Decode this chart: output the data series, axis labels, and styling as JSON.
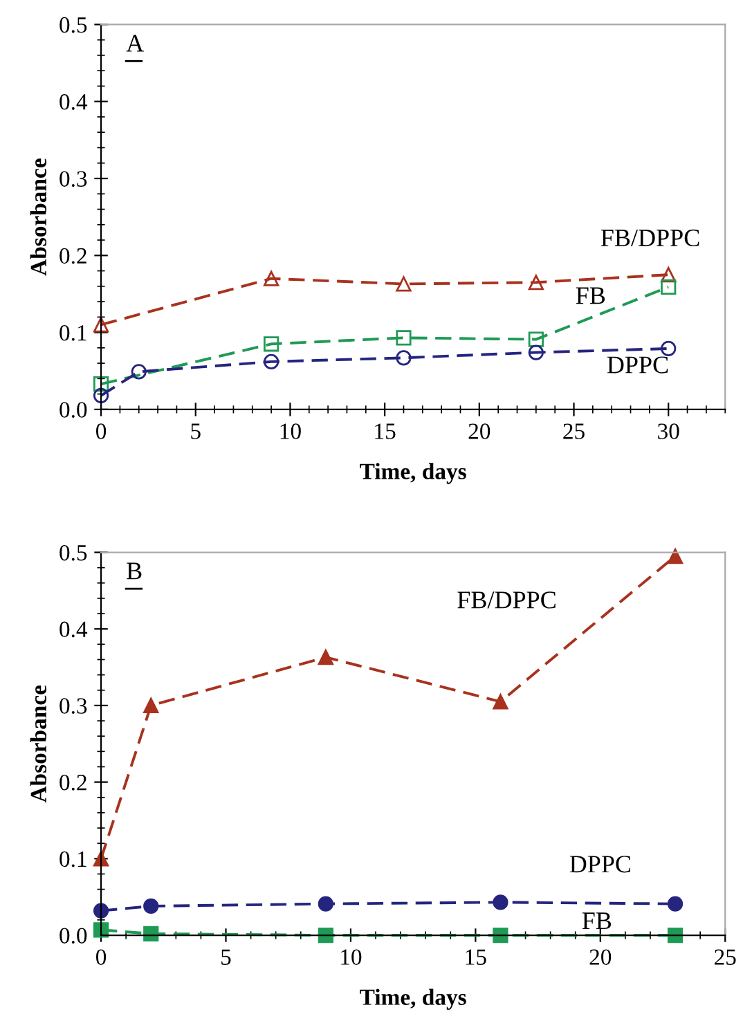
{
  "chart_data": [
    {
      "type": "line",
      "title": "A",
      "xlabel": "Time, days",
      "ylabel": "Absorbance",
      "xlim": [
        0,
        33
      ],
      "xticks": [
        0,
        5,
        10,
        15,
        20,
        25,
        30
      ],
      "ylim": [
        0,
        0.5
      ],
      "yticks": [
        {
          "value": 0,
          "label": "0.0"
        },
        0.1,
        0.2,
        0.3,
        0.4,
        0.5
      ],
      "line_style": "dashed",
      "grid": false,
      "legend": false,
      "series": [
        {
          "name": "FB/DPPC",
          "color": "#a8321e",
          "marker": "triangle",
          "x": [
            0,
            9,
            16,
            23,
            30
          ],
          "values": [
            0.11,
            0.17,
            0.163,
            0.165,
            0.175
          ]
        },
        {
          "name": "FB",
          "color": "#1f9a55",
          "marker": "square",
          "x": [
            0,
            9,
            16,
            23,
            30
          ],
          "values": [
            0.033,
            0.085,
            0.093,
            0.091,
            0.159
          ]
        },
        {
          "name": "DPPC",
          "color": "#25257f",
          "marker": "circle",
          "x": [
            0,
            2,
            9,
            16,
            23,
            30
          ],
          "values": [
            0.018,
            0.049,
            0.062,
            0.067,
            0.074,
            0.079
          ]
        }
      ]
    },
    {
      "type": "line",
      "title": "B",
      "xlabel": "Time, days",
      "ylabel": "Absorbance",
      "xlim": [
        0,
        25
      ],
      "xticks": [
        0,
        5,
        10,
        15,
        20,
        25
      ],
      "ylim": [
        0,
        0.5
      ],
      "yticks": [
        {
          "value": 0,
          "label": "0.0"
        },
        0.1,
        0.2,
        0.3,
        0.4,
        0.5
      ],
      "line_style": "dashed",
      "grid": false,
      "legend": false,
      "series": [
        {
          "name": "FB/DPPC",
          "color": "#a8321e",
          "marker": "triangle",
          "x": [
            0,
            2,
            9,
            16,
            23
          ],
          "values": [
            0.1,
            0.3,
            0.363,
            0.305,
            0.495
          ]
        },
        {
          "name": "DPPC",
          "color": "#25257f",
          "marker": "circle",
          "x": [
            0,
            2,
            9,
            16,
            23
          ],
          "values": [
            0.032,
            0.038,
            0.041,
            0.043,
            0.041
          ]
        },
        {
          "name": "FB",
          "color": "#1f9a55",
          "marker": "square",
          "x": [
            0,
            2,
            9,
            16,
            23
          ],
          "values": [
            0.007,
            0.002,
            0.0,
            0.0,
            0.0
          ]
        }
      ]
    }
  ]
}
